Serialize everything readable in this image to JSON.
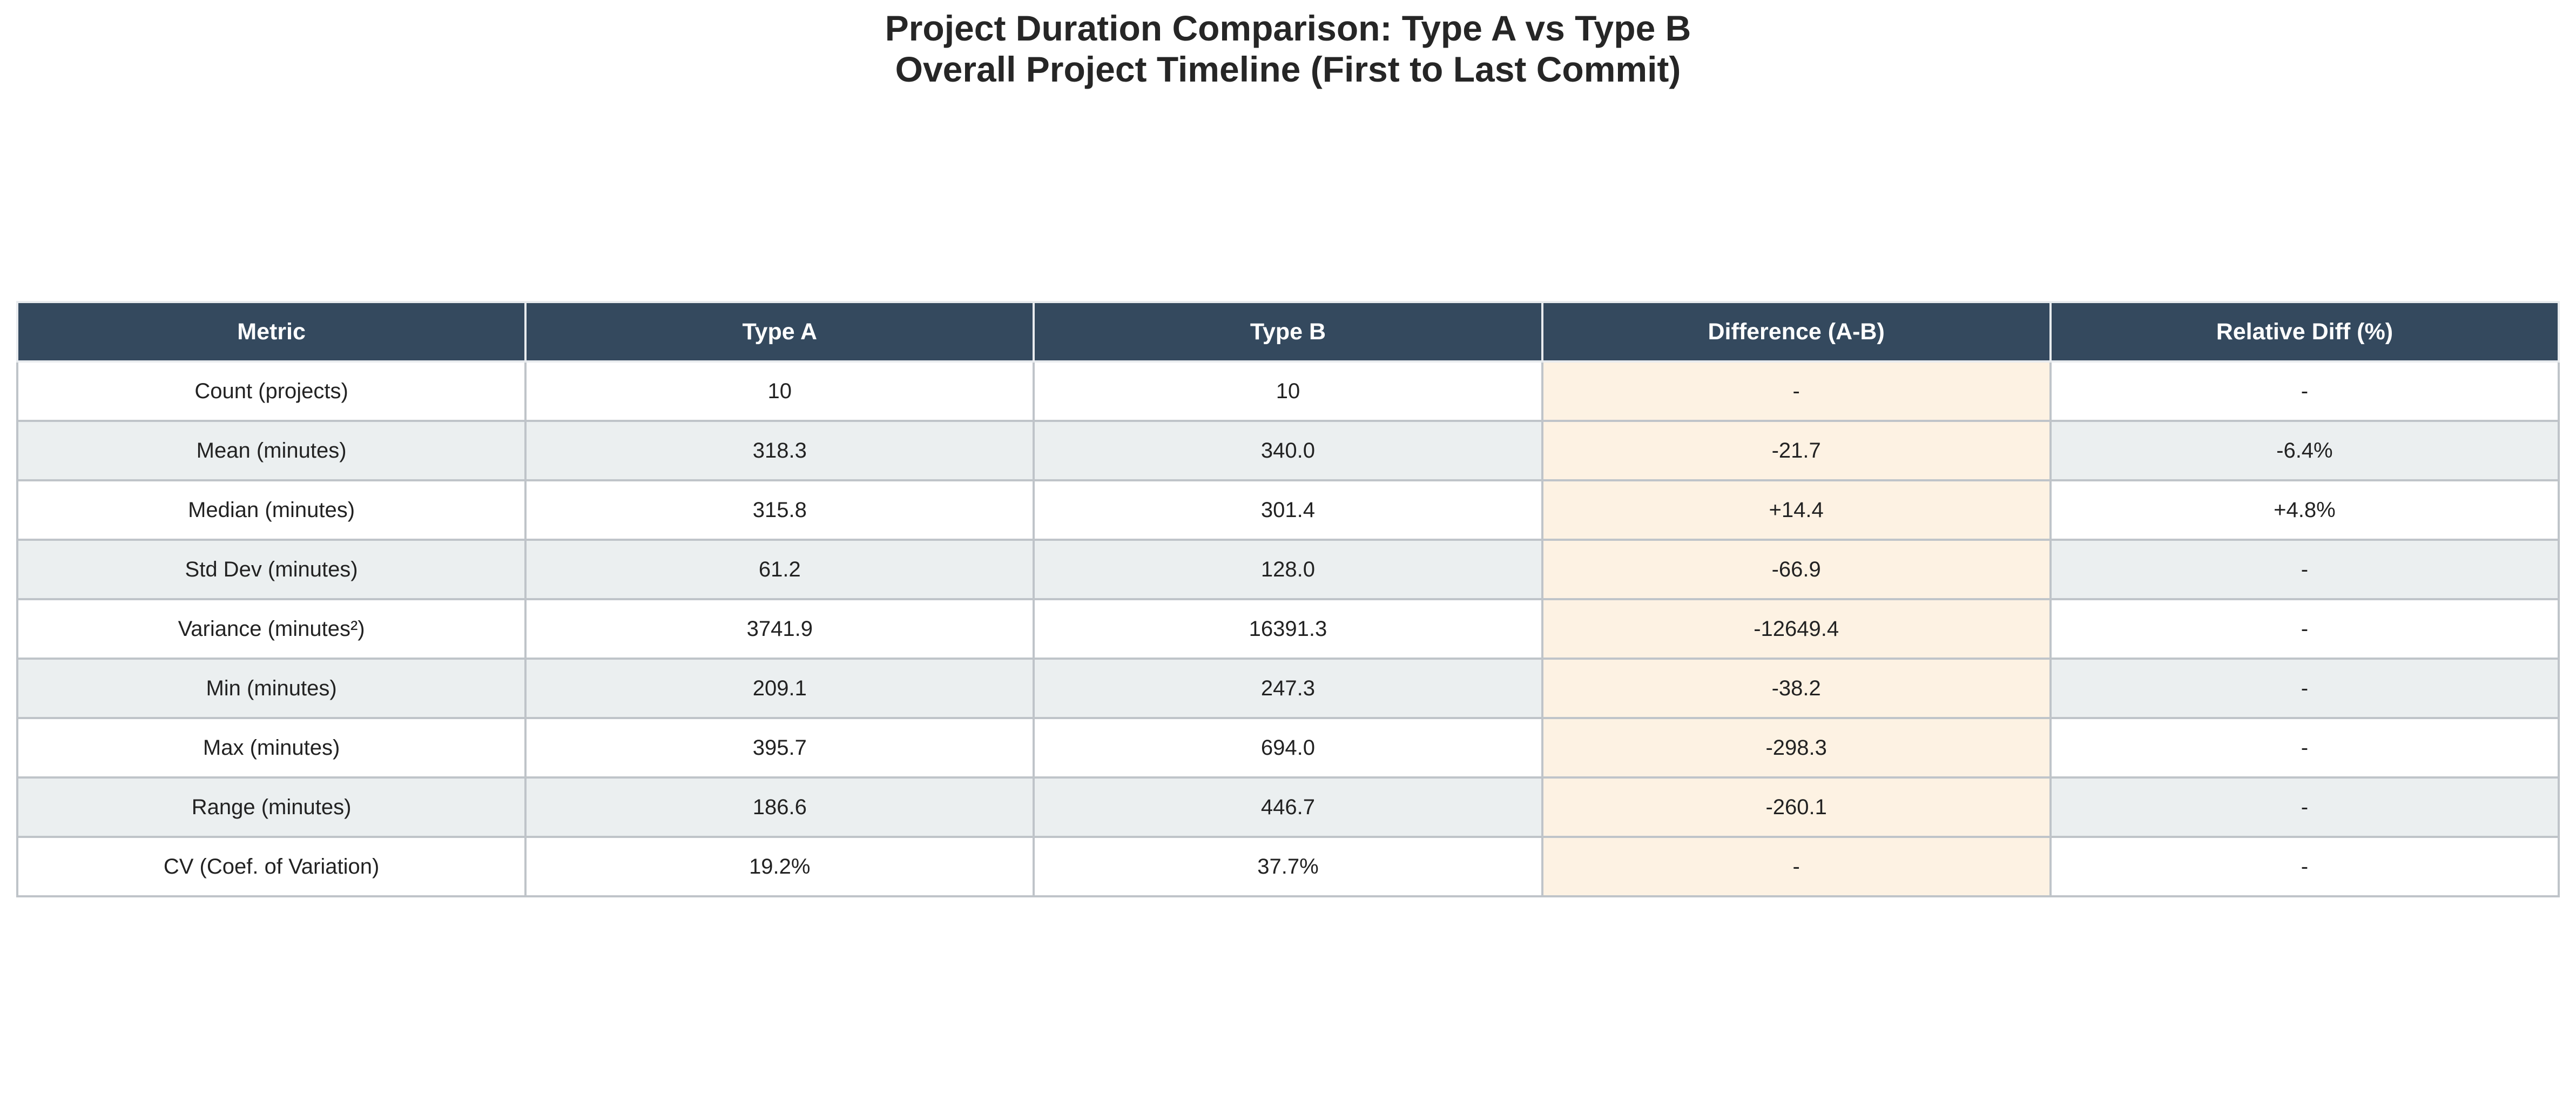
{
  "title_line1": "Project Duration Comparison: Type A vs Type B",
  "title_line2": "Overall Project Timeline (First to Last Commit)",
  "colors": {
    "header_bg": "#34495e",
    "header_text": "#ffffff",
    "row_alt_bg": "#ebeff0",
    "diff_col_bg": "#fdf2e3",
    "grid": "#bfc4c9"
  },
  "chart_data": {
    "type": "table",
    "title": "Project Duration Comparison: Type A vs Type B\nOverall Project Timeline (First to Last Commit)",
    "columns": [
      "Metric",
      "Type A",
      "Type B",
      "Difference (A-B)",
      "Relative Diff (%)"
    ],
    "rows": [
      [
        "Count (projects)",
        "10",
        "10",
        "-",
        "-"
      ],
      [
        "Mean (minutes)",
        "318.3",
        "340.0",
        "-21.7",
        "-6.4%"
      ],
      [
        "Median (minutes)",
        "315.8",
        "301.4",
        "+14.4",
        "+4.8%"
      ],
      [
        "Std Dev (minutes)",
        "61.2",
        "128.0",
        "-66.9",
        "-"
      ],
      [
        "Variance (minutes²)",
        "3741.9",
        "16391.3",
        "-12649.4",
        "-"
      ],
      [
        "Min (minutes)",
        "209.1",
        "247.3",
        "-38.2",
        "-"
      ],
      [
        "Max (minutes)",
        "395.7",
        "694.0",
        "-298.3",
        "-"
      ],
      [
        "Range (minutes)",
        "186.6",
        "446.7",
        "-260.1",
        "-"
      ],
      [
        "CV (Coef. of Variation)",
        "19.2%",
        "37.7%",
        "-",
        "-"
      ]
    ]
  }
}
